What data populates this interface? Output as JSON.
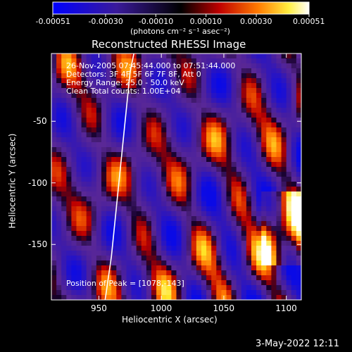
{
  "chart_data": {
    "type": "heatmap",
    "title": "Reconstructed RHESSI Image",
    "xlabel": "Heliocentric X (arcsec)",
    "ylabel": "Heliocentric Y (arcsec)",
    "xlim": [
      912,
      1112
    ],
    "ylim": [
      -195,
      5
    ],
    "x_ticks": [
      "950",
      "1000",
      "1050",
      "1100"
    ],
    "y_ticks": [
      "-50",
      "-100",
      "-150"
    ],
    "colorbar": {
      "min": -0.00051,
      "max": 0.00051,
      "tick_labels": [
        "-0.00051",
        "-0.00030",
        "-0.00010",
        "0.00010",
        "0.00030",
        "0.00051"
      ],
      "label": "(photons cm⁻² s⁻¹ asec⁻²)"
    },
    "annotations": [
      "26-Nov-2005 07:45:44.000 to 07:51:44.000",
      "Detectors: 3F 4F 5F 6F 7F 8F, Att 0",
      "Energy Range: 25.0 - 50.0 keV",
      "Clean     Total counts: 1.00E+04"
    ],
    "peak_position": "Position of Peak = [1078,-143]",
    "limb_curve": [
      [
        955,
        -195
      ],
      [
        960,
        -160
      ],
      [
        965,
        -110
      ],
      [
        970,
        -60
      ],
      [
        975,
        -10
      ],
      [
        978,
        5
      ]
    ]
  },
  "footer": {
    "date": "3-May-2022 12:11"
  }
}
